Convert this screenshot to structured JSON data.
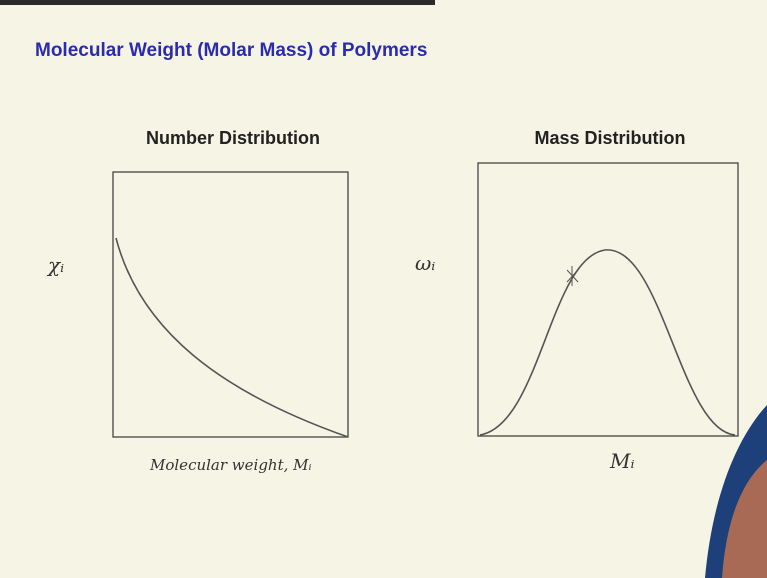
{
  "header": {
    "title": "Molecular Weight (Molar Mass) of Polymers"
  },
  "panels": [
    {
      "heading": "Number Distribution",
      "y_label": "χᵢ",
      "x_label": "Molecular weight, Mᵢ"
    },
    {
      "heading": "Mass Distribution",
      "y_label": "ωᵢ",
      "x_label": "Mᵢ"
    }
  ]
}
